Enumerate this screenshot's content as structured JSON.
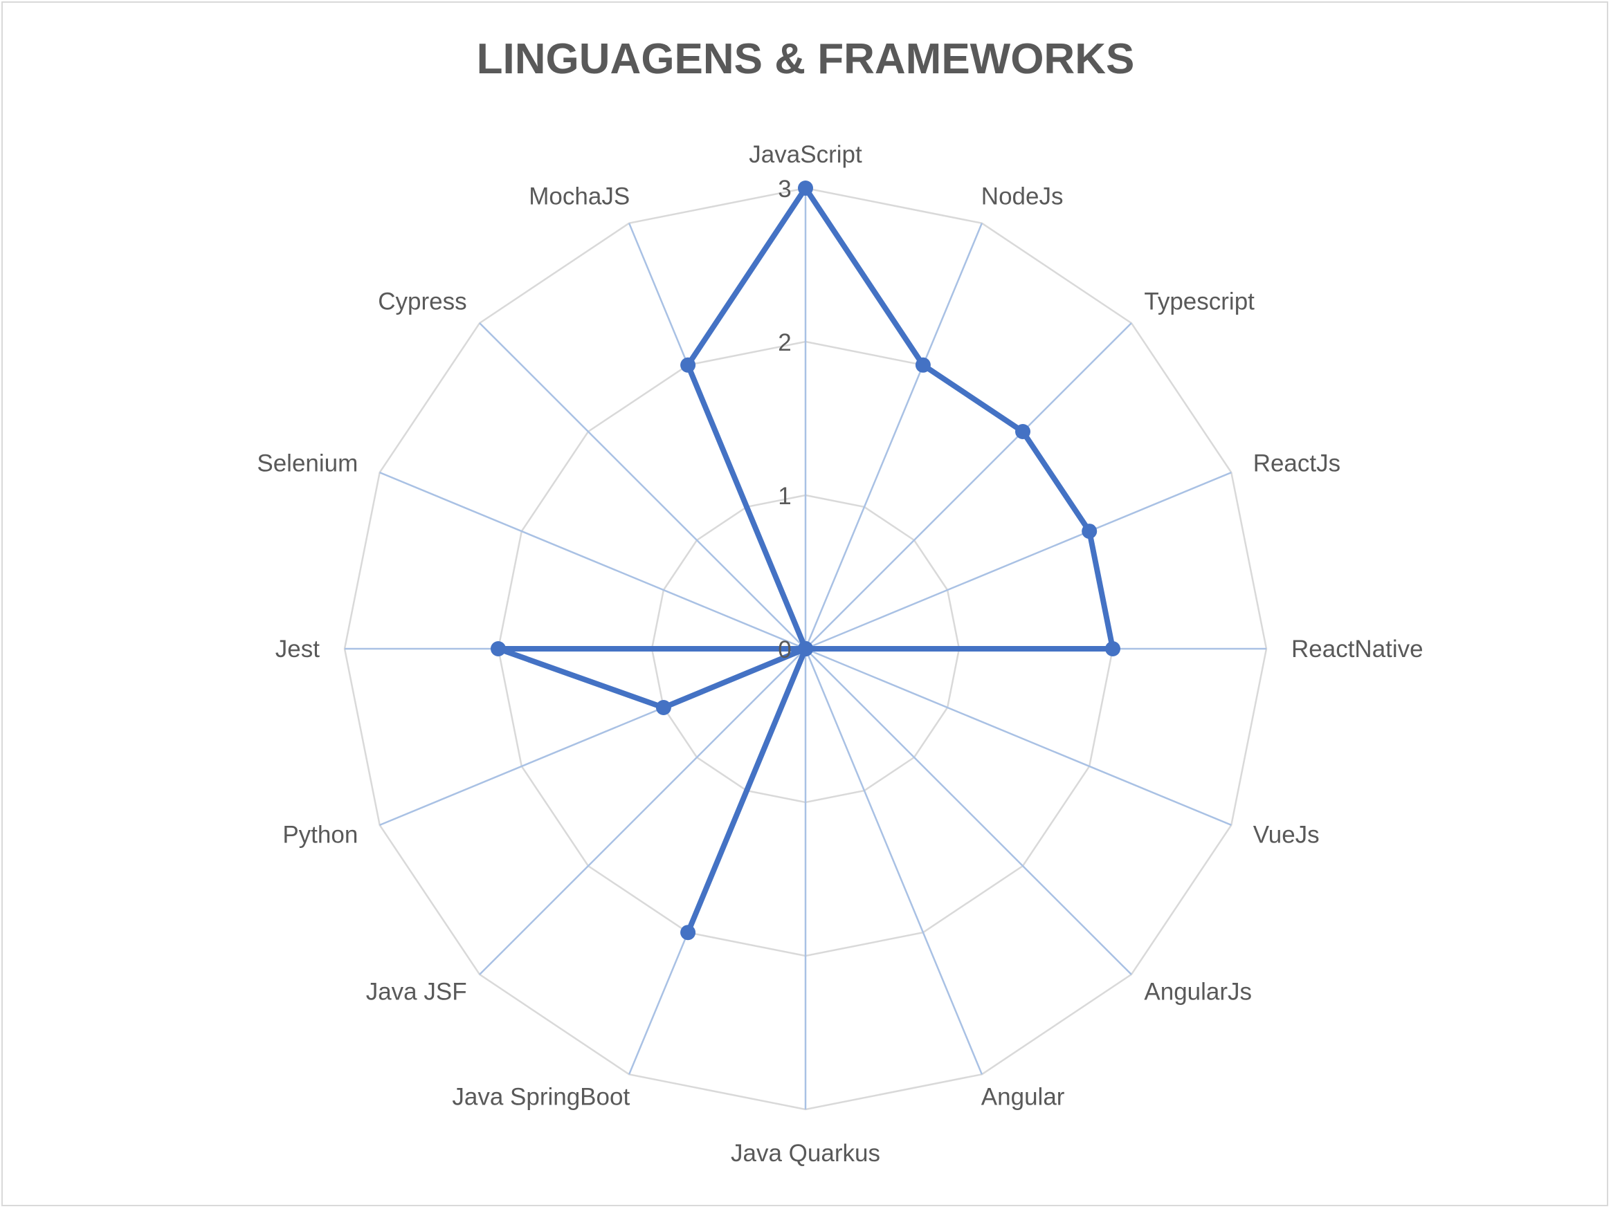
{
  "chart_data": {
    "type": "radar",
    "title": "LINGUAGENS & FRAMEWORKS",
    "categories": [
      "JavaScript",
      "NodeJs",
      "Typescript",
      "ReactJs",
      "ReactNative",
      "VueJs",
      "AngularJs",
      "Angular",
      "Java Quarkus",
      "Java SpringBoot",
      "Java JSF",
      "Python",
      "Jest",
      "Selenium",
      "Cypress",
      "MochaJS"
    ],
    "series": [
      {
        "values": [
          3,
          2,
          2,
          2,
          2,
          0,
          0,
          0,
          0,
          2,
          0,
          1,
          2,
          0,
          0,
          2
        ],
        "color": "#4472c4"
      }
    ],
    "rlim": [
      0,
      3
    ],
    "ticks": [
      "0",
      "1",
      "2",
      "3"
    ],
    "grid": true,
    "legend": "none",
    "colors": {
      "grid": "#d9d9d9",
      "spoke": "#a9c1e4",
      "text": "#595959"
    }
  }
}
